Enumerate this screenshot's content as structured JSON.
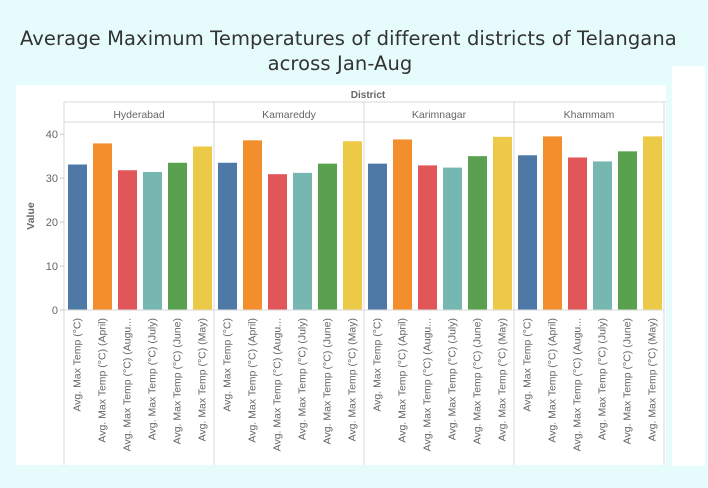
{
  "title": {
    "line1": "Average Maximum Temperatures of different districts of Telangana",
    "line2": "across Jan-Aug"
  },
  "chart_data": {
    "type": "bar",
    "header": "District",
    "ylabel": "Value",
    "ylim": [
      0,
      43
    ],
    "yticks": [
      0,
      10,
      20,
      30,
      40
    ],
    "grid": false,
    "districts": [
      "Hyderabad",
      "Kamareddy",
      "Karimnagar",
      "Khammam"
    ],
    "categories": [
      "Avg. Max Temp (°C)",
      "Avg. Max Temp (°C) (April)",
      "Avg. Max Temp (°C) (Augu...",
      "Avg. Max Temp (°C) (July)",
      "Avg. Max Temp (°C) (June)",
      "Avg. Max Temp (°C) (May)"
    ],
    "colors": [
      "#4e79a7",
      "#f28e2b",
      "#e15759",
      "#76b7b2",
      "#59a14f",
      "#edc948"
    ],
    "values": [
      [
        33.1,
        37.9,
        31.8,
        31.4,
        33.5,
        37.2
      ],
      [
        33.5,
        38.6,
        30.9,
        31.2,
        33.3,
        38.4
      ],
      [
        33.3,
        38.8,
        32.9,
        32.4,
        35.0,
        39.4
      ],
      [
        35.2,
        39.5,
        34.7,
        33.8,
        36.1,
        39.5
      ]
    ]
  }
}
